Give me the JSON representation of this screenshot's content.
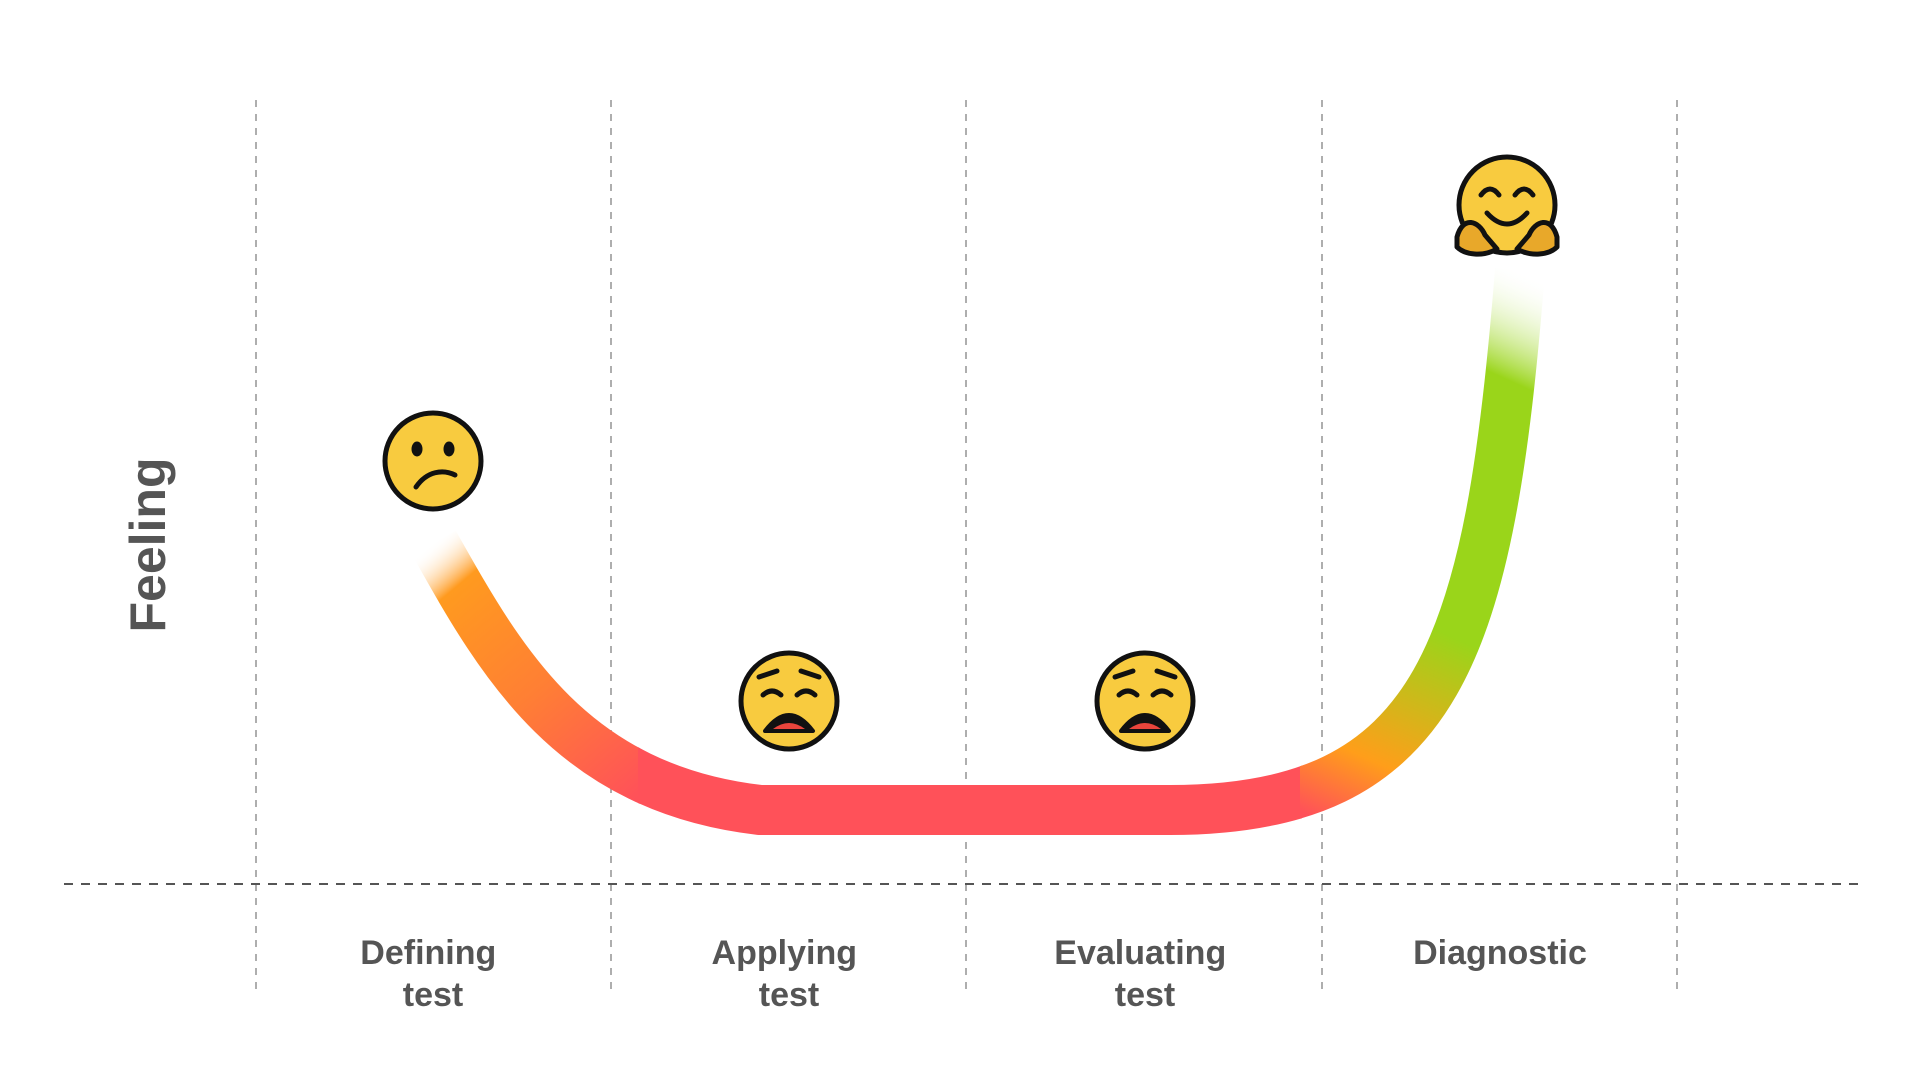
{
  "diagram": {
    "y_axis_label": "Feeling",
    "stages": [
      {
        "label_lines": [
          "Defining",
          "test"
        ],
        "emoji": "confused-face-icon"
      },
      {
        "label_lines": [
          "Applying",
          "test"
        ],
        "emoji": "weary-face-icon"
      },
      {
        "label_lines": [
          "Evaluating",
          "test"
        ],
        "emoji": "weary-face-icon"
      },
      {
        "label_lines": [
          "Diagnostic"
        ],
        "emoji": "hugging-face-icon"
      }
    ],
    "colors": {
      "orange": "#FF9A1F",
      "red": "#FF5159",
      "green": "#9AD51A",
      "emoji_yellow": "#F8CB3F",
      "label_gray": "#555555"
    }
  }
}
